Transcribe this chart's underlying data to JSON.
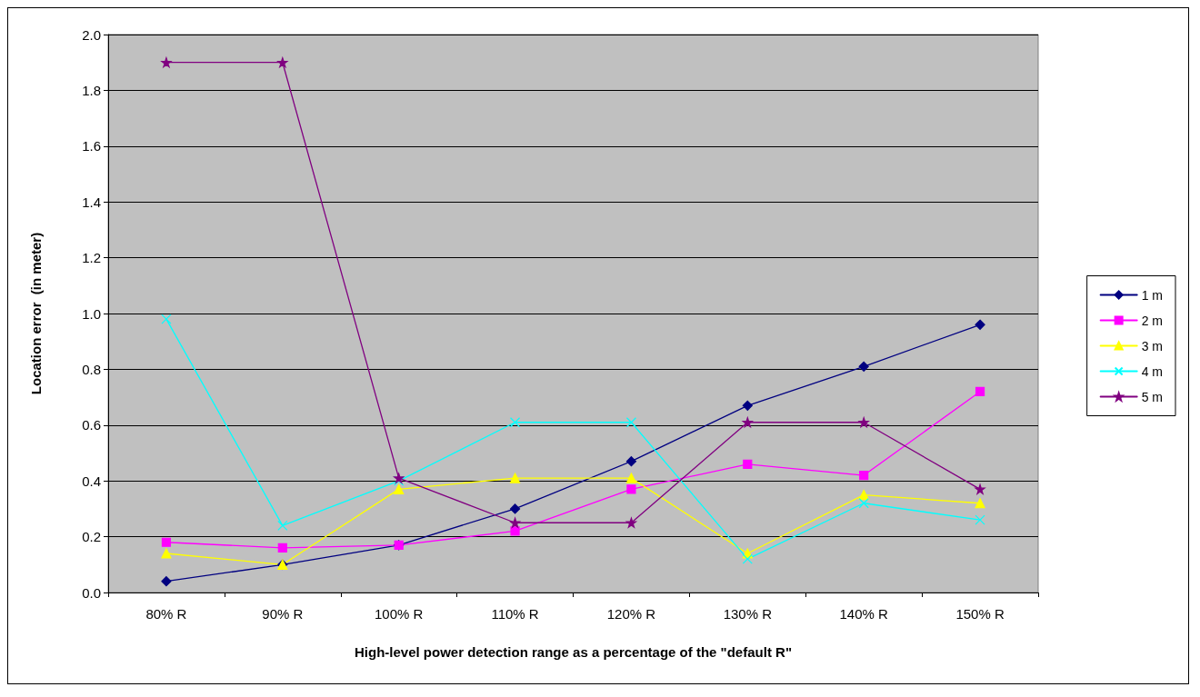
{
  "chart_data": {
    "type": "line",
    "xlabel": "High-level power detection range as a percentage of the \"default R\"",
    "ylabel": "Location error  (in meter)",
    "categories": [
      "80% R",
      "90% R",
      "100% R",
      "110% R",
      "120% R",
      "130% R",
      "140% R",
      "150% R"
    ],
    "series": [
      {
        "name": "1 m",
        "color": "#000080",
        "marker": "diamond",
        "values": [
          0.04,
          0.1,
          0.17,
          0.3,
          0.47,
          0.67,
          0.81,
          0.96
        ]
      },
      {
        "name": "2 m",
        "color": "#ff00ff",
        "marker": "square",
        "values": [
          0.18,
          0.16,
          0.17,
          0.22,
          0.37,
          0.46,
          0.42,
          0.72
        ]
      },
      {
        "name": "3 m",
        "color": "#ffff00",
        "marker": "triangle",
        "values": [
          0.14,
          0.1,
          0.37,
          0.41,
          0.41,
          0.14,
          0.35,
          0.32
        ]
      },
      {
        "name": "4 m",
        "color": "#00ffff",
        "marker": "cross",
        "values": [
          0.98,
          0.24,
          0.4,
          0.61,
          0.61,
          0.12,
          0.32,
          0.26
        ]
      },
      {
        "name": "5 m",
        "color": "#800080",
        "marker": "star",
        "values": [
          1.9,
          1.9,
          0.41,
          0.25,
          0.25,
          0.61,
          0.61,
          0.37
        ]
      }
    ],
    "ylim": [
      0,
      2
    ],
    "yticks": [
      {
        "value": 0,
        "label": "0.0"
      },
      0.2,
      0.4,
      0.6,
      0.8,
      {
        "value": 1,
        "label": "1.0"
      },
      1.2,
      1.4,
      1.6,
      1.8,
      {
        "value": 2,
        "label": "2.0"
      }
    ],
    "grid": "y",
    "legend": "right",
    "line_style": "solid"
  }
}
